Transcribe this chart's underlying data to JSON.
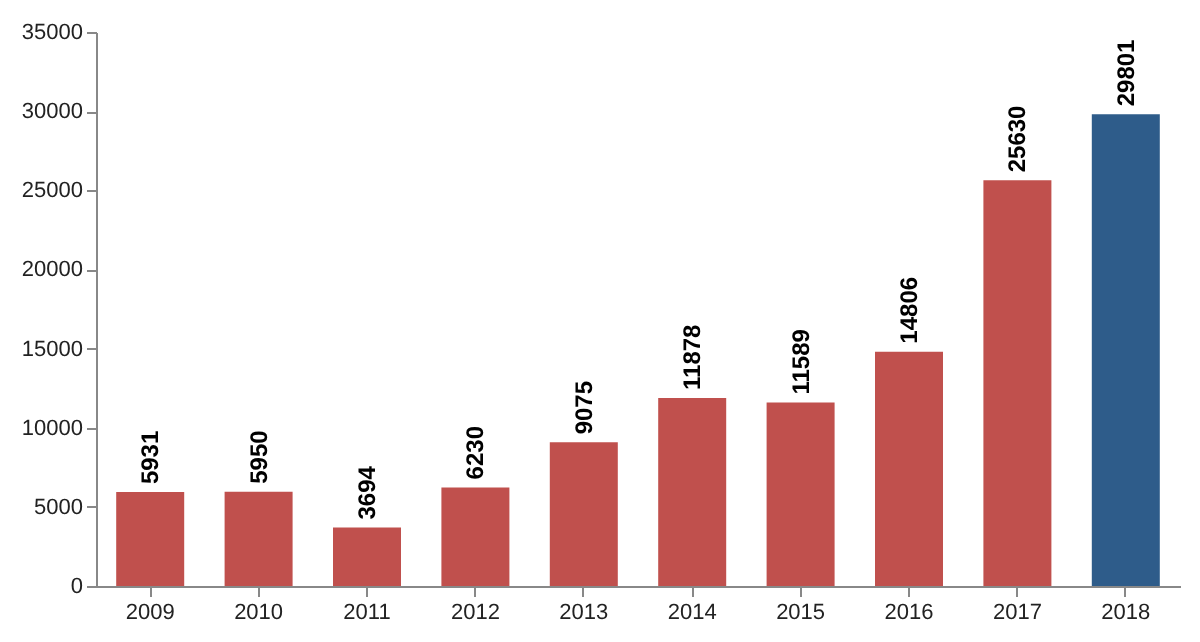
{
  "chart_data": {
    "type": "bar",
    "categories": [
      "2009",
      "2010",
      "2011",
      "2012",
      "2013",
      "2014",
      "2015",
      "2016",
      "2017",
      "2018"
    ],
    "values": [
      5931,
      5950,
      3694,
      6230,
      9075,
      11878,
      11589,
      14806,
      25630,
      29801
    ],
    "colors": [
      "#c0504d",
      "#c0504d",
      "#c0504d",
      "#c0504d",
      "#c0504d",
      "#c0504d",
      "#c0504d",
      "#c0504d",
      "#c0504d",
      "#2e5c8a"
    ],
    "ylim": [
      0,
      35000
    ],
    "yticks": [
      0,
      5000,
      10000,
      15000,
      20000,
      25000,
      30000,
      35000
    ],
    "grid": false,
    "data_labels": true
  }
}
